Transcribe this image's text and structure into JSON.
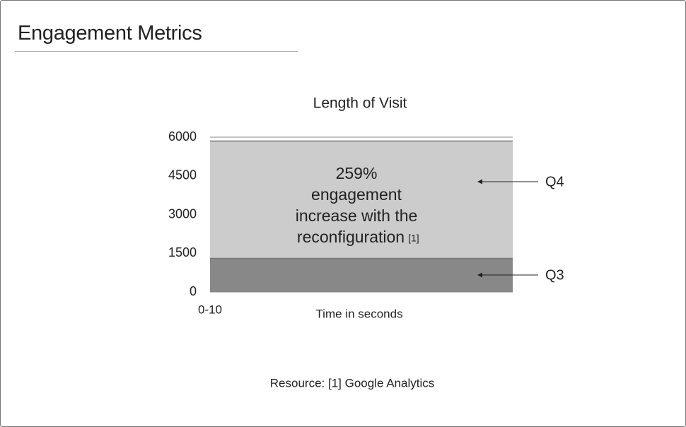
{
  "page_title": "Engagement Metrics",
  "footnote": "Resource: [1] Google Analytics",
  "chart_data": {
    "type": "area",
    "title": "Length of Visit",
    "x_label": "Time in seconds",
    "categories": [
      "0-10"
    ],
    "series": [
      {
        "name": "Q4",
        "color": "#cccccc",
        "values": [
          5850
        ]
      },
      {
        "name": "Q3",
        "color": "#888888",
        "values": [
          1300
        ]
      }
    ],
    "annotation": {
      "lines": [
        "259%",
        "engagement",
        "increase with the",
        "reconfiguration"
      ],
      "ref": "[1]"
    },
    "ylim": [
      0,
      6000
    ],
    "yticks": [
      0,
      1500,
      3000,
      4500,
      6000
    ],
    "grid": true
  }
}
